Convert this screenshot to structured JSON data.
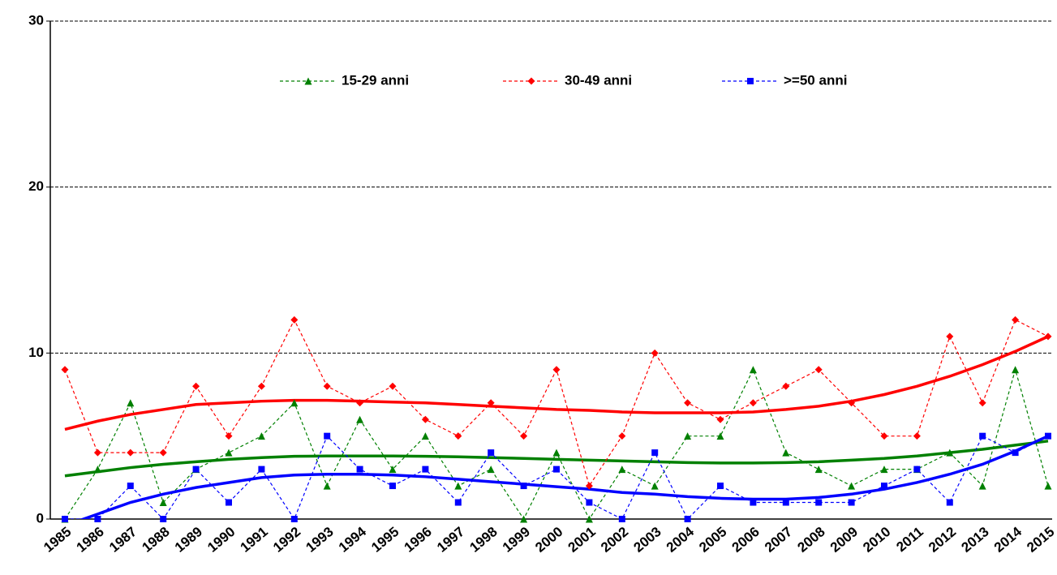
{
  "chart_data": {
    "type": "line",
    "categories": [
      "1985",
      "1986",
      "1987",
      "1988",
      "1989",
      "1990",
      "1991",
      "1992",
      "1993",
      "1994",
      "1995",
      "1996",
      "1997",
      "1998",
      "1999",
      "2000",
      "2001",
      "2002",
      "2003",
      "2004",
      "2005",
      "2006",
      "2007",
      "2008",
      "2009",
      "2010",
      "2011",
      "2012",
      "2013",
      "2014",
      "2015"
    ],
    "series": [
      {
        "name": "15-29 anni",
        "color": "#008000",
        "marker": "triangle",
        "values": [
          0,
          3,
          7,
          1,
          3,
          4,
          5,
          7,
          2,
          6,
          3,
          5,
          2,
          3,
          0,
          4,
          0,
          3,
          2,
          5,
          5,
          9,
          4,
          3,
          2,
          3,
          3,
          4,
          2,
          9,
          2
        ],
        "trend": [
          2.6,
          2.85,
          3.1,
          3.3,
          3.45,
          3.6,
          3.7,
          3.78,
          3.8,
          3.8,
          3.8,
          3.78,
          3.75,
          3.7,
          3.65,
          3.6,
          3.55,
          3.5,
          3.45,
          3.4,
          3.38,
          3.38,
          3.4,
          3.45,
          3.55,
          3.65,
          3.8,
          4.0,
          4.2,
          4.45,
          4.7
        ]
      },
      {
        "name": "30-49 anni",
        "color": "#ff0000",
        "marker": "diamond",
        "values": [
          9,
          4,
          4,
          4,
          8,
          5,
          8,
          12,
          8,
          7,
          8,
          6,
          5,
          7,
          5,
          9,
          2,
          5,
          10,
          7,
          6,
          7,
          8,
          9,
          7,
          5,
          5,
          11,
          7,
          12,
          11
        ],
        "trend": [
          5.4,
          5.9,
          6.3,
          6.6,
          6.9,
          7.0,
          7.1,
          7.15,
          7.15,
          7.1,
          7.05,
          7.0,
          6.9,
          6.8,
          6.7,
          6.6,
          6.55,
          6.45,
          6.4,
          6.4,
          6.4,
          6.45,
          6.6,
          6.8,
          7.1,
          7.5,
          8.0,
          8.6,
          9.3,
          10.1,
          11.0
        ]
      },
      {
        "name": ">=50 anni",
        "color": "#0000ff",
        "marker": "square",
        "values": [
          0,
          0,
          2,
          0,
          3,
          1,
          3,
          0,
          5,
          3,
          2,
          3,
          1,
          4,
          2,
          3,
          1,
          0,
          4,
          0,
          2,
          1,
          1,
          1,
          1,
          2,
          3,
          1,
          5,
          4,
          5
        ],
        "trend": [
          -0.4,
          0.3,
          1.0,
          1.5,
          1.9,
          2.2,
          2.5,
          2.65,
          2.7,
          2.7,
          2.65,
          2.55,
          2.4,
          2.25,
          2.1,
          1.95,
          1.8,
          1.6,
          1.5,
          1.35,
          1.25,
          1.2,
          1.2,
          1.3,
          1.5,
          1.8,
          2.2,
          2.7,
          3.3,
          4.1,
          5.0
        ]
      }
    ],
    "ylim": [
      0,
      30
    ],
    "yticks": [
      0,
      10,
      20,
      30
    ],
    "grid": true
  }
}
